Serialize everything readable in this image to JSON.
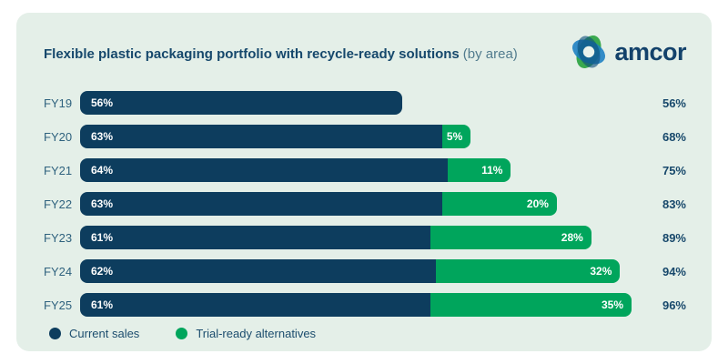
{
  "card": {
    "title": "Flexible plastic packaging portfolio with recycle-ready solutions",
    "title_suffix": "(by area)",
    "logo_text": "amcor"
  },
  "colors": {
    "navy": "#0d3d5e",
    "green": "#00a55c",
    "card_bg": "#e4efe8",
    "title_text": "#16486c",
    "total_text": "#17486b"
  },
  "chart_data": {
    "type": "bar",
    "orientation": "horizontal",
    "stacked": true,
    "title": "Flexible plastic packaging portfolio with recycle-ready solutions (by area)",
    "categories": [
      "FY19",
      "FY20",
      "FY21",
      "FY22",
      "FY23",
      "FY24",
      "FY25"
    ],
    "series": [
      {
        "name": "Current sales",
        "color": "#0d3d5e",
        "values": [
          56,
          63,
          64,
          63,
          61,
          62,
          61
        ]
      },
      {
        "name": "Trial-ready alternatives",
        "color": "#00a55c",
        "values": [
          null,
          5,
          11,
          20,
          28,
          32,
          35
        ]
      }
    ],
    "segment_labels": [
      [
        "56%",
        null
      ],
      [
        "63%",
        "5%"
      ],
      [
        "64%",
        "11%"
      ],
      [
        "63%",
        "20%"
      ],
      [
        "61%",
        "28%"
      ],
      [
        "62%",
        "32%"
      ],
      [
        "61%",
        "35%"
      ]
    ],
    "totals": [
      "56%",
      "68%",
      "75%",
      "83%",
      "89%",
      "94%",
      "96%"
    ],
    "xlim": [
      0,
      96
    ],
    "grid": false,
    "legend_position": "bottom-left",
    "value_unit": "%"
  }
}
